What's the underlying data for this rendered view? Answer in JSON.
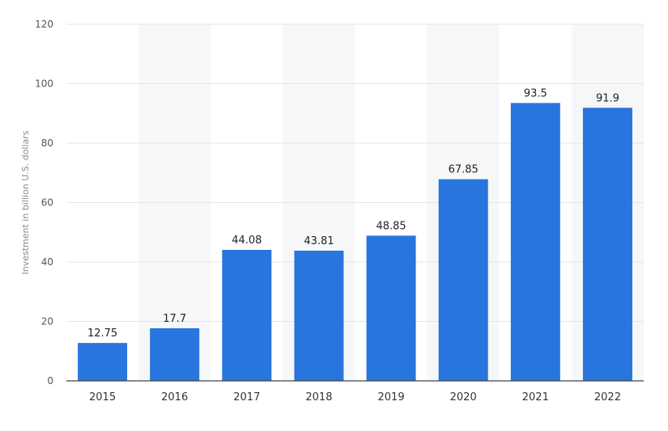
{
  "chart_data": {
    "type": "bar",
    "categories": [
      "2015",
      "2016",
      "2017",
      "2018",
      "2019",
      "2020",
      "2021",
      "2022"
    ],
    "values": [
      12.75,
      17.7,
      44.08,
      43.81,
      48.85,
      67.85,
      93.5,
      91.9
    ],
    "data_labels": [
      "12.75",
      "17.7",
      "44.08",
      "43.81",
      "48.85",
      "67.85",
      "93.5",
      "91.9"
    ],
    "ylabel": "Investment in billion U.S. dollars",
    "xlabel": "",
    "ylim": [
      0,
      120
    ],
    "yticks": [
      "0",
      "20",
      "40",
      "60",
      "80",
      "100",
      "120"
    ],
    "grid": true,
    "bar_color": "#2875dd",
    "grid_color": "#e6e6e6",
    "band_color": "#f6f7f9"
  }
}
